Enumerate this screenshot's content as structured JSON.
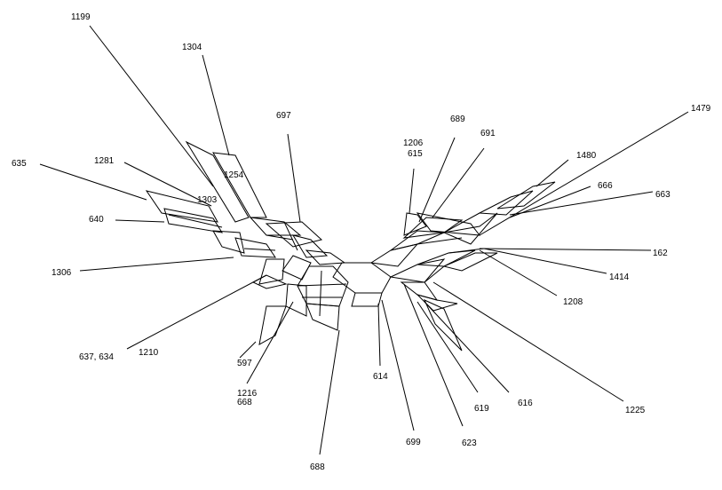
{
  "network": {
    "title": "",
    "line_color": "#000000",
    "background_color": "#ffffff",
    "taxa": [
      {
        "id": "t1199",
        "label": "1199"
      },
      {
        "id": "t1304",
        "label": "1304"
      },
      {
        "id": "t697",
        "label": "697"
      },
      {
        "id": "t635",
        "label": "635"
      },
      {
        "id": "t1281",
        "label": "1281"
      },
      {
        "id": "t1254",
        "label": "1254"
      },
      {
        "id": "t1303",
        "label": "1303"
      },
      {
        "id": "t640",
        "label": "640"
      },
      {
        "id": "t1306",
        "label": "1306"
      },
      {
        "id": "t637634",
        "label": "637, 634"
      },
      {
        "id": "t1210",
        "label": "1210"
      },
      {
        "id": "t597",
        "label": "597"
      },
      {
        "id": "t1216",
        "label": "1216"
      },
      {
        "id": "t668",
        "label": "668"
      },
      {
        "id": "t688",
        "label": "688"
      },
      {
        "id": "t614",
        "label": "614"
      },
      {
        "id": "t699",
        "label": "699"
      },
      {
        "id": "t623",
        "label": "623"
      },
      {
        "id": "t619",
        "label": "619"
      },
      {
        "id": "t616",
        "label": "616"
      },
      {
        "id": "t1225",
        "label": "1225"
      },
      {
        "id": "t1208",
        "label": "1208"
      },
      {
        "id": "t1414",
        "label": "1414"
      },
      {
        "id": "t162",
        "label": "162"
      },
      {
        "id": "t663",
        "label": "663"
      },
      {
        "id": "t666",
        "label": "666"
      },
      {
        "id": "t1480",
        "label": "1480"
      },
      {
        "id": "t1479",
        "label": "1479"
      },
      {
        "id": "t689",
        "label": "689"
      },
      {
        "id": "t691",
        "label": "691"
      },
      {
        "id": "t1206",
        "label": "1206"
      },
      {
        "id": "t615",
        "label": "615"
      }
    ]
  }
}
